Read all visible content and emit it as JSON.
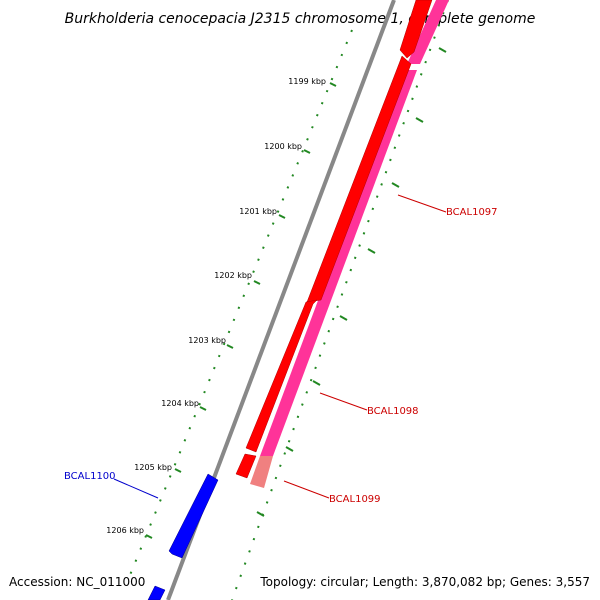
{
  "title": "Burkholderia cenocepacia J2315 chromosome 1, complete genome",
  "footer": {
    "accession": "Accession: NC_011000",
    "summary": "Topology: circular; Length: 3,870,082 bp; Genes: 3,557"
  },
  "ticks": [
    "1199 kbp",
    "1200 kbp",
    "1201 kbp",
    "1202 kbp",
    "1203 kbp",
    "1204 kbp",
    "1205 kbp",
    "1206 kbp"
  ],
  "features": [
    {
      "label": "BCAL1097",
      "color": "#cc0000"
    },
    {
      "label": "BCAL1098",
      "color": "#cc0000"
    },
    {
      "label": "BCAL1099",
      "color": "#cc0000"
    },
    {
      "label": "BCAL1100",
      "color": "#0000cc"
    }
  ],
  "colors": {
    "backbone": "#888888",
    "cds_forward": "#ff0000",
    "cds_reverse": "#0000ff",
    "gene_band": "#ff3399",
    "gene_band_light": "#f08080",
    "tick_marks": "#228822"
  }
}
